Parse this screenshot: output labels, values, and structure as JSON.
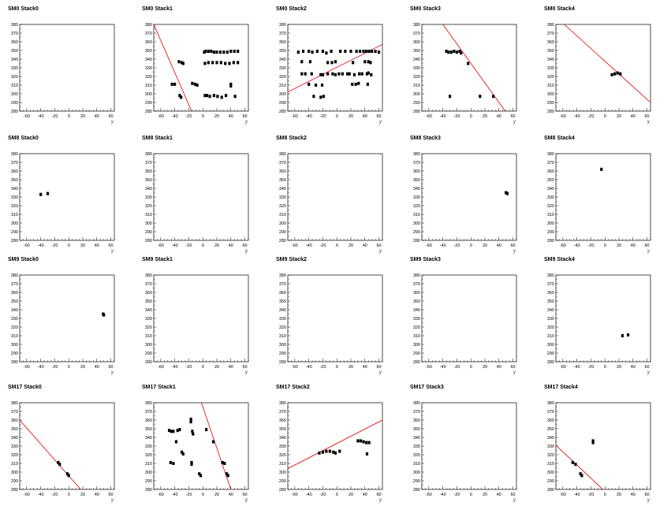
{
  "axes": {
    "xlim": [
      -70,
      65
    ],
    "ylim": [
      280,
      380
    ],
    "x_ticks": [
      -60,
      -40,
      -20,
      0,
      20,
      40,
      60
    ],
    "y_ticks": [
      280,
      290,
      300,
      310,
      320,
      330,
      340,
      350,
      360,
      370,
      380
    ],
    "xlabel": "y",
    "ylabel": ""
  },
  "colors": {
    "fit_line": "#e00000",
    "points": "#000000",
    "frame": "#000000"
  },
  "chart_data": [
    {
      "type": "scatter",
      "title": "SM0 Stack0",
      "points": [],
      "fit": null
    },
    {
      "type": "scatter",
      "title": "SM0 Stack1",
      "points": [
        [
          2,
          348
        ],
        [
          4,
          349
        ],
        [
          8,
          349
        ],
        [
          12,
          349
        ],
        [
          16,
          348
        ],
        [
          20,
          348
        ],
        [
          25,
          348
        ],
        [
          30,
          348
        ],
        [
          35,
          348
        ],
        [
          40,
          349
        ],
        [
          45,
          349
        ],
        [
          50,
          349
        ],
        [
          3,
          335
        ],
        [
          8,
          336
        ],
        [
          14,
          336
        ],
        [
          20,
          336
        ],
        [
          26,
          336
        ],
        [
          32,
          335
        ],
        [
          38,
          335
        ],
        [
          44,
          336
        ],
        [
          50,
          336
        ],
        [
          -34,
          337
        ],
        [
          -30,
          336
        ],
        [
          -28,
          335
        ],
        [
          -44,
          311
        ],
        [
          -40,
          311
        ],
        [
          -15,
          312
        ],
        [
          -11,
          311
        ],
        [
          -8,
          310
        ],
        [
          40,
          311
        ],
        [
          40,
          309
        ],
        [
          -33,
          298
        ],
        [
          -31,
          296
        ],
        [
          3,
          298
        ],
        [
          6,
          298
        ],
        [
          10,
          297
        ],
        [
          16,
          298
        ],
        [
          21,
          297
        ],
        [
          27,
          296
        ],
        [
          33,
          298
        ],
        [
          46,
          297
        ]
      ],
      "fit": [
        [
          -70,
          380
        ],
        [
          -16,
          280
        ]
      ]
    },
    {
      "type": "scatter",
      "title": "SM0 Stack2",
      "points": [
        [
          -55,
          348
        ],
        [
          -48,
          349
        ],
        [
          -40,
          349
        ],
        [
          -35,
          348
        ],
        [
          -28,
          349
        ],
        [
          -20,
          349
        ],
        [
          -15,
          347
        ],
        [
          -8,
          349
        ],
        [
          5,
          349
        ],
        [
          12,
          349
        ],
        [
          20,
          349
        ],
        [
          28,
          349
        ],
        [
          33,
          349
        ],
        [
          38,
          349
        ],
        [
          42,
          349
        ],
        [
          46,
          349
        ],
        [
          50,
          349
        ],
        [
          55,
          349
        ],
        [
          60,
          348
        ],
        [
          -50,
          337
        ],
        [
          -38,
          337
        ],
        [
          -13,
          336
        ],
        [
          -7,
          336
        ],
        [
          -2,
          337
        ],
        [
          23,
          336
        ],
        [
          40,
          337
        ],
        [
          45,
          337
        ],
        [
          48,
          336
        ],
        [
          -50,
          323
        ],
        [
          -45,
          323
        ],
        [
          -36,
          323
        ],
        [
          -23,
          322
        ],
        [
          -20,
          322
        ],
        [
          -13,
          323
        ],
        [
          -6,
          323
        ],
        [
          -2,
          322
        ],
        [
          3,
          323
        ],
        [
          8,
          323
        ],
        [
          15,
          323
        ],
        [
          18,
          323
        ],
        [
          25,
          322
        ],
        [
          32,
          323
        ],
        [
          36,
          323
        ],
        [
          43,
          323
        ],
        [
          45,
          324
        ],
        [
          49,
          322
        ],
        [
          -40,
          311
        ],
        [
          -30,
          310
        ],
        [
          -21,
          310
        ],
        [
          22,
          311
        ],
        [
          27,
          311
        ],
        [
          31,
          312
        ],
        [
          44,
          311
        ],
        [
          -33,
          297
        ],
        [
          -23,
          296
        ],
        [
          -19,
          297
        ]
      ],
      "fit": [
        [
          -70,
          302
        ],
        [
          65,
          357
        ]
      ]
    },
    {
      "type": "scatter",
      "title": "SM0 Stack3",
      "points": [
        [
          -35,
          349
        ],
        [
          -32,
          348
        ],
        [
          -28,
          348
        ],
        [
          -24,
          349
        ],
        [
          -20,
          348
        ],
        [
          -16,
          349
        ],
        [
          -14,
          347
        ],
        [
          -4,
          335
        ],
        [
          -30,
          297
        ],
        [
          13,
          297
        ],
        [
          32,
          297
        ]
      ],
      "fit": [
        [
          -40,
          380
        ],
        [
          49,
          280
        ]
      ]
    },
    {
      "type": "scatter",
      "title": "SM0 Stack4",
      "points": [
        [
          10,
          322
        ],
        [
          14,
          323
        ],
        [
          18,
          324
        ],
        [
          22,
          323
        ]
      ],
      "fit": [
        [
          -58,
          380
        ],
        [
          65,
          290
        ]
      ]
    },
    {
      "type": "scatter",
      "title": "SM8 Stack0",
      "points": [
        [
          -40,
          333
        ],
        [
          -30,
          334
        ]
      ],
      "fit": null
    },
    {
      "type": "scatter",
      "title": "SM8 Stack1",
      "points": [],
      "fit": null
    },
    {
      "type": "scatter",
      "title": "SM8 Stack2",
      "points": [],
      "fit": null
    },
    {
      "type": "scatter",
      "title": "SM8 Stack3",
      "points": [
        [
          50,
          335
        ],
        [
          52,
          334
        ]
      ],
      "fit": null
    },
    {
      "type": "scatter",
      "title": "SM8 Stack4",
      "points": [
        [
          -5,
          362
        ]
      ],
      "fit": null
    },
    {
      "type": "scatter",
      "title": "SM9 Stack0",
      "points": [
        [
          49,
          335
        ],
        [
          50,
          334
        ]
      ],
      "fit": null
    },
    {
      "type": "scatter",
      "title": "SM9 Stack1",
      "points": [],
      "fit": null
    },
    {
      "type": "scatter",
      "title": "SM9 Stack2",
      "points": [],
      "fit": null
    },
    {
      "type": "scatter",
      "title": "SM9 Stack3",
      "points": [],
      "fit": null
    },
    {
      "type": "scatter",
      "title": "SM9 Stack4",
      "points": [
        [
          25,
          310
        ],
        [
          33,
          311
        ]
      ],
      "fit": null
    },
    {
      "type": "scatter",
      "title": "SM17 Stack0",
      "points": [
        [
          -15,
          311
        ],
        [
          -13,
          309
        ],
        [
          -2,
          298
        ],
        [
          0,
          296
        ]
      ],
      "fit": [
        [
          -70,
          360
        ],
        [
          17,
          280
        ]
      ]
    },
    {
      "type": "scatter",
      "title": "SM17 Stack1",
      "points": [
        [
          -48,
          348
        ],
        [
          -45,
          347
        ],
        [
          -42,
          347
        ],
        [
          -36,
          348
        ],
        [
          -33,
          349
        ],
        [
          -17,
          361
        ],
        [
          -17,
          358
        ],
        [
          -15,
          347
        ],
        [
          -14,
          344
        ],
        [
          -38,
          335
        ],
        [
          -30,
          323
        ],
        [
          -28,
          321
        ],
        [
          -46,
          311
        ],
        [
          -42,
          310
        ],
        [
          -16,
          311
        ],
        [
          -16,
          309
        ],
        [
          -5,
          298
        ],
        [
          -3,
          296
        ],
        [
          5,
          349
        ],
        [
          15,
          335
        ],
        [
          28,
          311
        ],
        [
          31,
          310
        ],
        [
          34,
          298
        ],
        [
          36,
          296
        ]
      ],
      "fit": [
        [
          -2,
          380
        ],
        [
          40,
          280
        ]
      ]
    },
    {
      "type": "scatter",
      "title": "SM17 Stack2",
      "points": [
        [
          -25,
          322
        ],
        [
          -20,
          323
        ],
        [
          -15,
          324
        ],
        [
          -10,
          324
        ],
        [
          -5,
          323
        ],
        [
          -2,
          322
        ],
        [
          4,
          324
        ],
        [
          30,
          336
        ],
        [
          34,
          336
        ],
        [
          38,
          335
        ],
        [
          42,
          334
        ],
        [
          46,
          334
        ],
        [
          43,
          321
        ]
      ],
      "fit": [
        [
          -70,
          304
        ],
        [
          65,
          360
        ]
      ]
    },
    {
      "type": "scatter",
      "title": "SM17 Stack3",
      "points": [],
      "fit": null
    },
    {
      "type": "scatter",
      "title": "SM17 Stack4",
      "points": [
        [
          -17,
          336
        ],
        [
          -17,
          334
        ],
        [
          -46,
          311
        ],
        [
          -42,
          309
        ],
        [
          -35,
          298
        ],
        [
          -33,
          296
        ]
      ],
      "fit": [
        [
          -70,
          331
        ],
        [
          -3,
          280
        ]
      ]
    }
  ]
}
